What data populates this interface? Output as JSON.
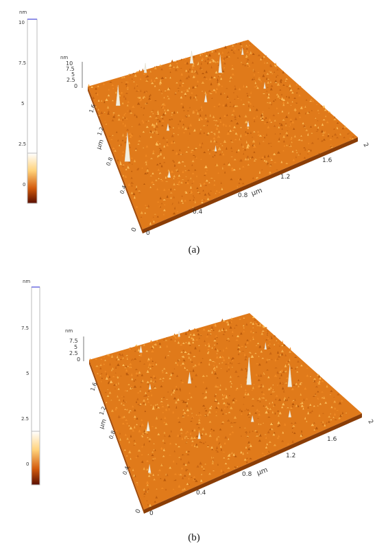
{
  "panels": [
    {
      "id": "a",
      "caption": "(a)",
      "colorbar": {
        "unit": "nm",
        "ticks": [
          "10",
          "7.5",
          "5",
          "2.5",
          "0"
        ]
      },
      "axes": {
        "z_unit": "nm",
        "z_ticks": [
          "10",
          "7.5",
          "5",
          "2.5",
          "0"
        ],
        "y_label": "µm",
        "y_ticks": [
          "0.4",
          "0.8",
          "1.2",
          "1.6"
        ],
        "x_label": "µm",
        "x_ticks": [
          "0.4",
          "0.8",
          "1.2",
          "1.6",
          "2"
        ],
        "origin": [
          "0",
          "0"
        ]
      }
    },
    {
      "id": "b",
      "caption": "(b)",
      "colorbar": {
        "unit": "nm",
        "ticks": [
          "7.5",
          "5",
          "2.5",
          "0"
        ]
      },
      "axes": {
        "z_unit": "nm",
        "z_ticks": [
          "7.5",
          "5",
          "2.5",
          "0"
        ],
        "y_label": "µm",
        "y_ticks": [
          "0.4",
          "0.8",
          "1.2",
          "1.6"
        ],
        "x_label": "µm",
        "x_ticks": [
          "0.4",
          "0.8",
          "1.2",
          "1.6",
          "2"
        ],
        "origin": [
          "0",
          "0"
        ]
      }
    }
  ],
  "colors": {
    "surface_base": "#e07a1a",
    "surface_dark": "#b95a0c",
    "surface_light": "#f4a640",
    "peak": "#f3efe0",
    "colorbar_top": "#ffffff",
    "colorbar_mid": "#ffd27a",
    "colorbar_low": "#d35b0d",
    "colorbar_bottom": "#5a0e00",
    "scale_cap": "#6a6ae0"
  }
}
